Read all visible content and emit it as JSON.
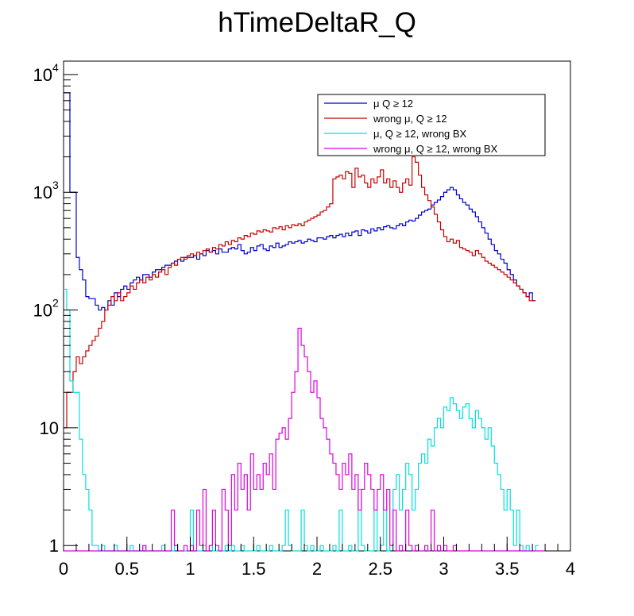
{
  "chart_data": {
    "type": "line",
    "style": "step-histogram",
    "title": "hTimeDeltaR_Q",
    "xlabel": "",
    "ylabel": "",
    "xlim": [
      0,
      4
    ],
    "ylim": [
      0.9,
      13000
    ],
    "y_scale": "log",
    "x_ticks": [
      "0",
      "0.5",
      "1",
      "1.5",
      "2",
      "2.5",
      "3",
      "3.5",
      "4"
    ],
    "y_ticks": [
      {
        "value": 1,
        "base": "1",
        "exp": ""
      },
      {
        "value": 10,
        "base": "10",
        "exp": ""
      },
      {
        "value": 100,
        "base": "10",
        "exp": "2"
      },
      {
        "value": 1000,
        "base": "10",
        "exp": "3"
      },
      {
        "value": 10000,
        "base": "10",
        "exp": "4"
      }
    ],
    "bin_width": 0.025,
    "legend_position": "top-right",
    "series": [
      {
        "name": "μ Q ≥ 12",
        "color": "#0000cc",
        "values": [
          7000,
          7000,
          1000,
          1000,
          280,
          220,
          180,
          130,
          125,
          125,
          110,
          100,
          105,
          100,
          120,
          110,
          140,
          130,
          150,
          160,
          150,
          170,
          180,
          190,
          180,
          200,
          200,
          190,
          210,
          220,
          220,
          230,
          240,
          240,
          250,
          260,
          270,
          260,
          280,
          280,
          280,
          290,
          270,
          300,
          290,
          320,
          310,
          320,
          300,
          330,
          310,
          310,
          330,
          340,
          330,
          360,
          320,
          300,
          310,
          340,
          320,
          350,
          360,
          330,
          320,
          350,
          340,
          370,
          340,
          350,
          360,
          380,
          370,
          380,
          390,
          370,
          380,
          400,
          390,
          380,
          410,
          410,
          400,
          420,
          430,
          410,
          430,
          440,
          420,
          450,
          430,
          460,
          470,
          430,
          480,
          470,
          450,
          490,
          470,
          500,
          480,
          510,
          520,
          500,
          490,
          520,
          540,
          520,
          560,
          580,
          570,
          600,
          640,
          680,
          700,
          720,
          780,
          820,
          860,
          920,
          1000,
          1050,
          1100,
          1050,
          950,
          880,
          820,
          780,
          720,
          680,
          620,
          560,
          500,
          450,
          400,
          360,
          320,
          300,
          270,
          250,
          220,
          200,
          180,
          160,
          150,
          140,
          130,
          140,
          120
        ]
      },
      {
        "name": "wrong μ, Q ≥ 12",
        "color": "#cc0000",
        "values": [
          10,
          20,
          20,
          30,
          40,
          35,
          40,
          45,
          50,
          55,
          60,
          70,
          80,
          100,
          110,
          130,
          120,
          140,
          120,
          130,
          140,
          160,
          150,
          170,
          180,
          170,
          190,
          180,
          200,
          190,
          210,
          220,
          200,
          230,
          250,
          240,
          270,
          280,
          270,
          290,
          300,
          290,
          310,
          300,
          320,
          330,
          310,
          340,
          330,
          360,
          350,
          380,
          360,
          390,
          380,
          410,
          400,
          430,
          420,
          450,
          440,
          470,
          460,
          480,
          470,
          460,
          500,
          490,
          510,
          480,
          520,
          500,
          530,
          520,
          540,
          520,
          560,
          580,
          600,
          620,
          640,
          680,
          700,
          750,
          800,
          1300,
          1350,
          1400,
          1300,
          1500,
          1450,
          1100,
          1600,
          1350,
          1400,
          1200,
          1100,
          1300,
          1200,
          1350,
          1550,
          1200,
          1300,
          1100,
          1250,
          1100,
          1000,
          1200,
          1300,
          1150,
          2000,
          1800,
          1400,
          1100,
          950,
          850,
          750,
          650,
          560,
          480,
          420,
          380,
          400,
          370,
          390,
          340,
          330,
          320,
          310,
          290,
          320,
          300,
          280,
          260,
          250,
          240,
          230,
          220,
          210,
          200,
          190,
          180,
          170,
          160,
          150,
          140,
          130,
          120,
          120
        ]
      },
      {
        "name": "μ, Q ≥ 12, wrong BX",
        "color": "#00e0e0",
        "values": [
          150,
          100,
          25,
          20,
          20,
          8,
          4,
          3,
          2,
          1,
          1,
          0,
          1,
          0,
          0,
          0,
          1,
          0,
          0,
          0,
          0,
          1,
          0,
          0,
          0,
          1,
          0,
          0,
          0,
          0,
          0,
          1,
          0,
          0,
          0,
          1,
          0,
          0,
          0,
          0,
          2,
          0,
          0,
          0,
          1,
          0,
          1,
          0,
          0,
          0,
          0,
          1,
          0,
          1,
          0,
          0,
          1,
          0,
          0,
          0,
          0,
          1,
          0,
          0,
          0,
          1,
          0,
          0,
          0,
          1,
          2,
          1,
          0,
          0,
          0,
          2,
          1,
          0,
          1,
          0,
          0,
          1,
          0,
          0,
          0,
          1,
          0,
          2,
          0,
          0,
          1,
          0,
          0,
          3,
          1,
          0,
          0,
          0,
          2,
          0,
          1,
          2,
          0,
          1,
          3,
          4,
          2,
          3,
          5,
          4,
          2,
          3,
          5,
          6,
          5,
          8,
          7,
          10,
          12,
          10,
          15,
          14,
          18,
          16,
          14,
          12,
          15,
          16,
          12,
          10,
          14,
          12,
          10,
          8,
          10,
          7,
          5,
          4,
          3,
          2,
          3,
          2,
          1,
          2,
          1,
          0,
          1,
          0,
          0,
          1
        ]
      },
      {
        "name": "wrong μ, Q ≥ 12, wrong BX",
        "color": "#e000e0",
        "values": [
          0,
          0,
          0,
          0,
          0,
          0,
          0,
          0,
          0,
          0,
          0,
          0,
          0,
          0,
          0,
          0,
          0,
          0,
          0,
          0,
          0,
          0,
          0,
          0,
          0,
          1,
          0,
          0,
          0,
          0,
          0,
          0,
          0,
          0,
          2,
          1,
          0,
          0,
          1,
          0,
          1,
          0,
          2,
          1,
          3,
          0,
          1,
          2,
          1,
          0,
          3,
          2,
          1,
          4,
          2,
          5,
          3,
          4,
          2,
          6,
          3,
          4,
          3,
          5,
          4,
          6,
          3,
          8,
          9,
          10,
          8,
          12,
          20,
          30,
          70,
          50,
          40,
          30,
          20,
          25,
          18,
          12,
          10,
          8,
          6,
          5,
          4,
          3,
          5,
          4,
          6,
          3,
          4,
          2,
          3,
          5,
          4,
          3,
          2,
          3,
          4,
          2,
          3,
          1,
          2,
          0,
          1,
          0,
          2,
          1,
          0,
          1,
          0,
          0,
          1,
          0,
          2,
          0,
          1,
          0,
          1,
          0,
          0,
          1,
          0,
          0,
          0,
          0,
          0,
          0,
          0,
          0,
          0,
          0,
          0,
          0,
          0,
          0,
          0,
          0,
          0,
          0,
          0,
          0,
          0,
          0,
          0,
          0,
          0,
          0,
          0,
          0
        ]
      }
    ]
  }
}
